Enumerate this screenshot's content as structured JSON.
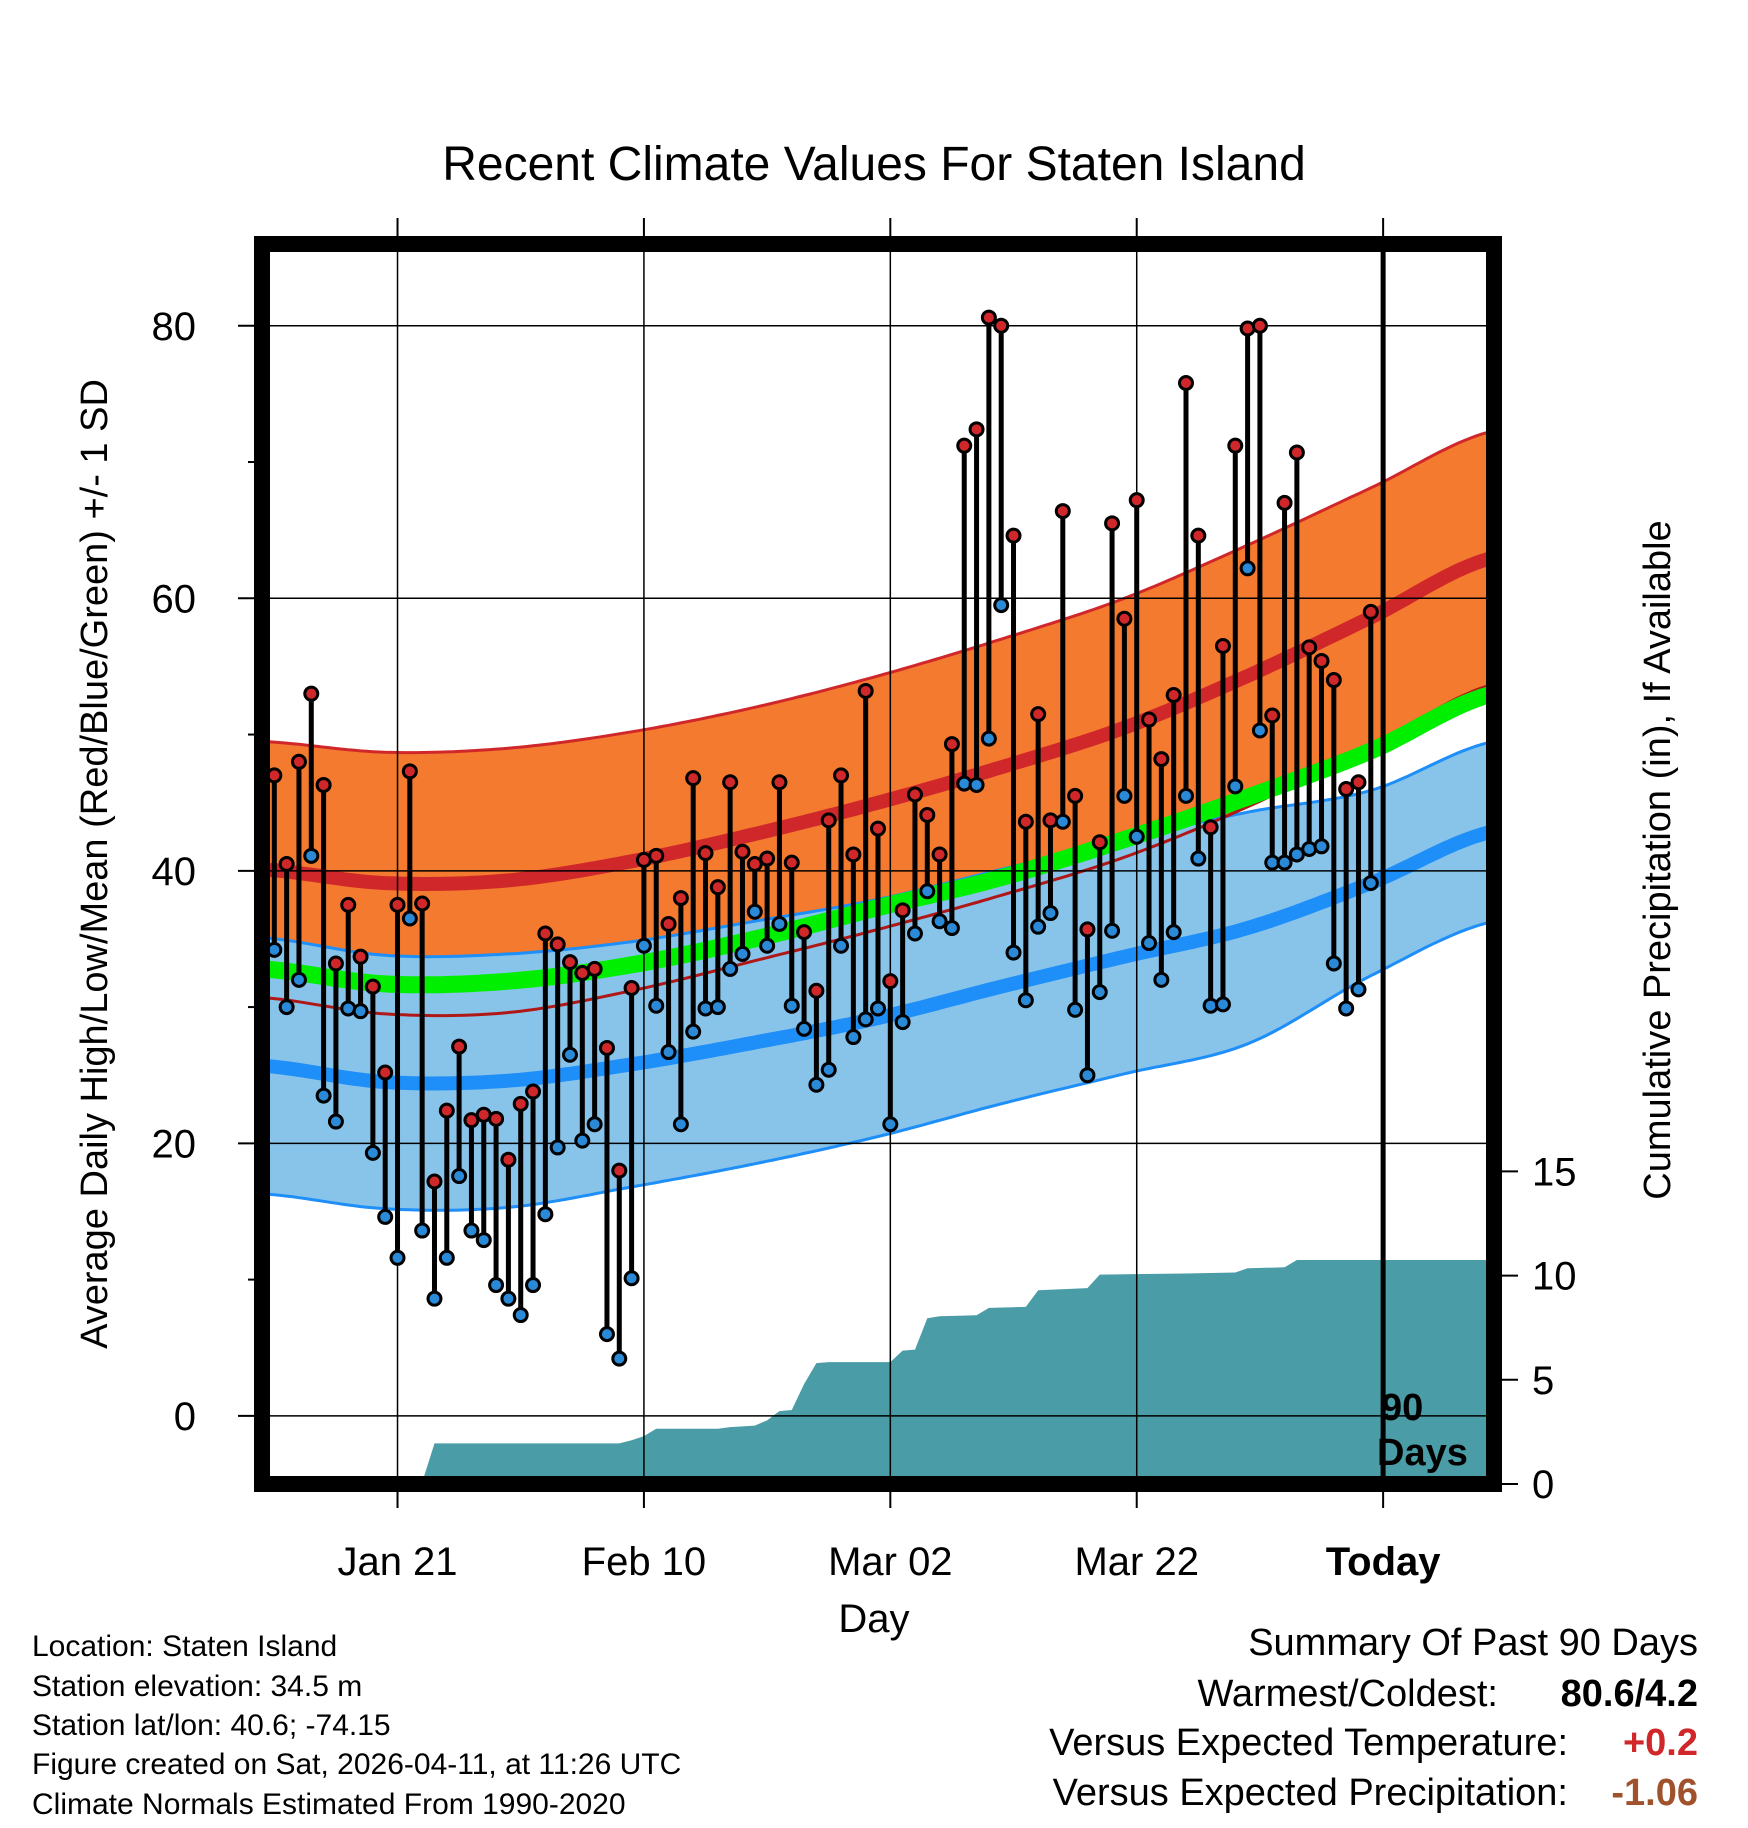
{
  "chart_data": {
    "type": "line",
    "title": "Recent Climate Values For Staten Island",
    "xlabel": "Day",
    "ylabel": "Average Daily High/Low/Mean (Red/Blue/Green) +/- 1 SD",
    "y2label": "Cumulative Precipitation (in), If Available",
    "x_tick_labels": [
      "Jan 21",
      "Feb 10",
      "Mar 02",
      "Mar 22",
      "Today"
    ],
    "x_tick_days": [
      10,
      30,
      50,
      70,
      90
    ],
    "y_ticks": [
      0,
      20,
      40,
      60,
      80
    ],
    "y2_ticks": [
      0,
      5,
      10,
      15
    ],
    "ylim": [
      -5,
      86
    ],
    "y2lim": [
      0,
      59.5
    ],
    "xlim": [
      -1,
      99
    ],
    "today_day": 90,
    "today_label_line1": "90",
    "today_label_line2": "Days",
    "highs": [
      47,
      40.5,
      48,
      53,
      46.3,
      33.2,
      37.5,
      33.7,
      31.5,
      25.2,
      37.5,
      47.3,
      37.6,
      17.2,
      22.4,
      27.1,
      21.7,
      22.1,
      21.8,
      18.8,
      22.9,
      23.8,
      35.4,
      34.6,
      33.3,
      32.5,
      32.8,
      27,
      18,
      31.4,
      40.8,
      41.1,
      36.1,
      38,
      46.8,
      41.3,
      38.8,
      46.5,
      41.4,
      40.5,
      40.9,
      46.5,
      40.6,
      35.5,
      31.2,
      43.7,
      47,
      41.2,
      53.2,
      43.1,
      31.9,
      37.1,
      45.6,
      44.1,
      41.2,
      49.3,
      71.2,
      72.4,
      80.6,
      80,
      64.6,
      43.6,
      51.5,
      43.7,
      66.4,
      45.5,
      35.7,
      42.1,
      65.5,
      58.5,
      67.2,
      51.1,
      48.2,
      52.9,
      75.8,
      64.6,
      43.2,
      56.5,
      71.2,
      79.8,
      80,
      51.4,
      67,
      70.7,
      56.4,
      55.4,
      54,
      46,
      46.5,
      59
    ],
    "lows": [
      34.2,
      30,
      32,
      41.1,
      23.5,
      21.6,
      29.9,
      29.7,
      19.3,
      14.6,
      11.6,
      36.5,
      13.6,
      8.6,
      11.6,
      17.6,
      13.6,
      12.9,
      9.6,
      8.6,
      7.4,
      9.6,
      14.8,
      19.7,
      26.5,
      20.2,
      21.4,
      6,
      4.2,
      10.1,
      34.5,
      30.1,
      26.7,
      21.4,
      28.2,
      29.9,
      30,
      32.8,
      33.9,
      37,
      34.5,
      36.1,
      30.1,
      28.4,
      24.3,
      25.4,
      34.5,
      27.8,
      29.1,
      29.9,
      21.4,
      28.9,
      35.4,
      38.5,
      36.3,
      35.8,
      46.4,
      46.3,
      49.7,
      59.5,
      34,
      30.5,
      35.9,
      36.9,
      43.6,
      29.8,
      25,
      31.1,
      35.6,
      45.5,
      42.5,
      34.7,
      32,
      35.5,
      45.5,
      40.9,
      30.1,
      30.2,
      46.2,
      62.2,
      50.3,
      40.6,
      40.6,
      41.2,
      41.6,
      41.8,
      33.2,
      29.9,
      31.3,
      39.1
    ],
    "normals": {
      "days": [
        -1,
        9,
        19,
        29,
        39,
        49,
        59,
        69,
        79,
        89,
        99
      ],
      "high_mean": [
        40.1,
        39.1,
        39.3,
        40.7,
        42.7,
        45.0,
        47.6,
        50.5,
        54.3,
        58.6,
        63.0
      ],
      "high_sd": [
        9.4,
        9.6,
        9.7,
        9.5,
        9.3,
        9.3,
        9.4,
        9.5,
        9.6,
        9.5,
        9.3
      ],
      "low_mean": [
        25.7,
        24.5,
        24.6,
        25.8,
        27.4,
        29.2,
        31.5,
        33.7,
        35.8,
        39.1,
        42.9
      ],
      "low_sd": [
        9.4,
        9.3,
        9.3,
        9.0,
        8.9,
        8.7,
        8.6,
        8.6,
        8.5,
        6.8,
        6.6
      ],
      "mean_mean": [
        32.8,
        31.7,
        31.9,
        33.1,
        35.0,
        37.3,
        39.5,
        42.3,
        45.4,
        48.8,
        53.0
      ]
    },
    "precip_cumulative": [
      [
        -1,
        0
      ],
      [
        6,
        0
      ],
      [
        7,
        0.08
      ],
      [
        12,
        0.08
      ],
      [
        13,
        1.95
      ],
      [
        28,
        1.95
      ],
      [
        29,
        2.1
      ],
      [
        30,
        2.3
      ],
      [
        31,
        2.65
      ],
      [
        36,
        2.65
      ],
      [
        37,
        2.73
      ],
      [
        39,
        2.8
      ],
      [
        40,
        3.05
      ],
      [
        41,
        3.5
      ],
      [
        42,
        3.55
      ],
      [
        43,
        4.8
      ],
      [
        44,
        5.8
      ],
      [
        45,
        5.85
      ],
      [
        50,
        5.85
      ],
      [
        51,
        6.4
      ],
      [
        52,
        6.45
      ],
      [
        53,
        7.95
      ],
      [
        54,
        8.05
      ],
      [
        57,
        8.1
      ],
      [
        58,
        8.45
      ],
      [
        61,
        8.5
      ],
      [
        62,
        9.3
      ],
      [
        66,
        9.4
      ],
      [
        67,
        10.05
      ],
      [
        74,
        10.1
      ],
      [
        78,
        10.15
      ],
      [
        79,
        10.35
      ],
      [
        82,
        10.4
      ],
      [
        83,
        10.75
      ],
      [
        99,
        10.75
      ]
    ]
  },
  "colors": {
    "high_band": "#f47a2f",
    "high_line": "#d0282a",
    "low_band": "#88c4ea",
    "low_line": "#1e8ef8",
    "mean_line": "#00ee00",
    "precip": "#4a9ca6",
    "high_dot": "#d0282a",
    "low_dot": "#2a8ad8",
    "temp_positive": "#d0282a",
    "precip_negative": "#a0522d"
  },
  "footer": {
    "location": "Location: Staten Island",
    "elevation": "Station elevation: 34.5 m",
    "latlon": "Station lat/lon: 40.6; -74.15",
    "created": "Figure created on Sat, 2026-04-11, at 11:26 UTC",
    "normals": "Climate Normals Estimated From 1990-2020"
  },
  "summary": {
    "title": "Summary Of Past 90 Days",
    "warmest_coldest_label": "Warmest/Coldest:",
    "warmest_coldest_value": "80.6/4.2",
    "temp_label": "Versus Expected Temperature:",
    "temp_value": "+0.2",
    "precip_label": "Versus Expected Precipitation:",
    "precip_value": "-1.06"
  }
}
